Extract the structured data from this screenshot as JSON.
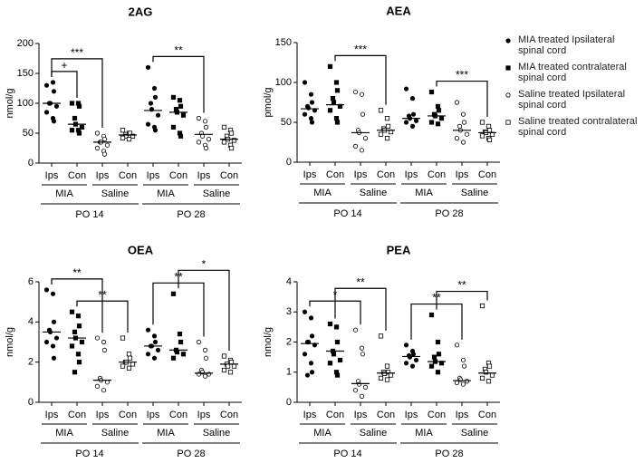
{
  "legend": [
    {
      "label": "MIA treated Ipsilateral spinal cord",
      "marker": "filled-circle"
    },
    {
      "label": "MIA treated contralateral spinal cord",
      "marker": "filled-square"
    },
    {
      "label": "Saline treated Ipsilateral spinal cord",
      "marker": "open-circle"
    },
    {
      "label": "Saline treated contralateral spinal cord",
      "marker": "open-square"
    }
  ],
  "chart_data": [
    {
      "type": "dot",
      "title": "2AG",
      "ylabel": "nmol/g",
      "ylim": [
        0,
        200
      ],
      "yticks": [
        0,
        50,
        100,
        150,
        200
      ],
      "categories": [
        "Ips",
        "Con",
        "Ips",
        "Con",
        "Ips",
        "Con",
        "Ips",
        "Con"
      ],
      "groups": [
        "MIA",
        "Saline",
        "MIA",
        "Saline"
      ],
      "timepoints": [
        "PO 14",
        "PO 28"
      ],
      "points": [
        [
          130,
          135,
          120,
          100,
          100,
          95,
          85,
          75,
          70
        ],
        [
          100,
          100,
          95,
          75,
          65,
          60,
          55,
          55,
          50
        ],
        [
          50,
          45,
          40,
          35,
          35,
          30,
          25,
          20,
          15
        ],
        [
          55,
          50,
          50,
          48,
          45,
          45,
          42,
          40
        ],
        [
          160,
          125,
          110,
          100,
          90,
          80,
          65,
          60,
          55
        ],
        [
          110,
          105,
          95,
          90,
          85,
          80,
          60,
          50,
          45
        ],
        [
          75,
          70,
          60,
          50,
          45,
          40,
          35,
          30,
          25
        ],
        [
          60,
          55,
          50,
          45,
          40,
          38,
          35,
          30,
          25
        ]
      ],
      "medians": [
        100,
        65,
        35,
        47,
        88,
        85,
        48,
        40
      ],
      "annotations": [
        {
          "text": "***",
          "from": 0,
          "to": 2
        },
        {
          "text": "+",
          "from": 0,
          "to": 1
        },
        {
          "text": "**",
          "from": 4,
          "to": 6
        }
      ]
    },
    {
      "type": "dot",
      "title": "AEA",
      "ylabel": "pmol/g",
      "ylim": [
        0,
        150
      ],
      "yticks": [
        0,
        50,
        100,
        150
      ],
      "categories": [
        "Ips",
        "Con",
        "Ips",
        "Con",
        "Ips",
        "Con",
        "Ips",
        "Con"
      ],
      "groups": [
        "MIA",
        "Saline",
        "MIA",
        "Saline"
      ],
      "timepoints": [
        "PO 14",
        "PO 28"
      ],
      "points": [
        [
          100,
          85,
          75,
          70,
          68,
          65,
          60,
          55,
          50
        ],
        [
          120,
          100,
          90,
          80,
          75,
          70,
          65,
          55,
          50
        ],
        [
          88,
          85,
          60,
          40,
          37,
          30,
          20,
          15
        ],
        [
          65,
          55,
          45,
          42,
          40,
          38,
          35,
          30
        ],
        [
          92,
          80,
          60,
          58,
          55,
          52,
          50,
          45
        ],
        [
          88,
          70,
          65,
          60,
          58,
          55,
          50,
          48
        ],
        [
          75,
          60,
          50,
          45,
          40,
          35,
          30,
          25
        ],
        [
          50,
          45,
          40,
          38,
          37,
          35,
          33,
          30,
          28
        ]
      ],
      "medians": [
        67,
        72,
        37,
        40,
        55,
        58,
        40,
        37
      ],
      "annotations": [
        {
          "text": "***",
          "from": 1,
          "to": 3
        },
        {
          "text": "***",
          "from": 5,
          "to": 7
        }
      ]
    },
    {
      "type": "dot",
      "title": "OEA",
      "ylabel": "nmol/g",
      "ylim": [
        0,
        6
      ],
      "yticks": [
        0,
        2,
        4,
        6
      ],
      "categories": [
        "Ips",
        "Con",
        "Ips",
        "Con",
        "Ips",
        "Con",
        "Ips",
        "Con"
      ],
      "groups": [
        "MIA",
        "Saline",
        "MIA",
        "Saline"
      ],
      "timepoints": [
        "PO 14",
        "PO 28"
      ],
      "points": [
        [
          5.6,
          5.4,
          4.0,
          3.6,
          3.5,
          3.2,
          3.0,
          2.8,
          2.2
        ],
        [
          4.5,
          4.3,
          3.8,
          3.5,
          3.2,
          3.0,
          2.8,
          2.4,
          2.0,
          1.5
        ],
        [
          3.2,
          3.0,
          2.6,
          1.2,
          1.1,
          1.0,
          0.8,
          0.6
        ],
        [
          3.2,
          2.4,
          2.2,
          2.0,
          2.0,
          1.9,
          1.8,
          1.7
        ],
        [
          3.6,
          3.3,
          3.0,
          2.8,
          2.8,
          2.6,
          2.4,
          2.2
        ],
        [
          5.4,
          3.4,
          3.0,
          2.6,
          2.5,
          2.4,
          2.2
        ],
        [
          3.0,
          2.6,
          2.2,
          1.6,
          1.5,
          1.4,
          1.4,
          1.3
        ],
        [
          2.3,
          2.1,
          2.0,
          1.9,
          1.8,
          1.8,
          1.6,
          1.5
        ]
      ],
      "medians": [
        3.5,
        3.2,
        1.1,
        2.0,
        2.8,
        2.6,
        1.45,
        1.9
      ],
      "annotations": [
        {
          "text": "**",
          "from": 0,
          "to": 2
        },
        {
          "text": "**",
          "from": 1,
          "to": 3
        },
        {
          "text": "**",
          "from": 4,
          "to": 6
        },
        {
          "text": "*",
          "from": 5,
          "to": 7
        }
      ]
    },
    {
      "type": "dot",
      "title": "PEA",
      "ylabel": "nmol/g",
      "ylim": [
        0,
        4
      ],
      "yticks": [
        0,
        1,
        2,
        3,
        4
      ],
      "categories": [
        "Ips",
        "Con",
        "Ips",
        "Con",
        "Ips",
        "Con",
        "Ips",
        "Con"
      ],
      "groups": [
        "MIA",
        "Saline",
        "MIA",
        "Saline"
      ],
      "timepoints": [
        "PO 14",
        "PO 28"
      ],
      "points": [
        [
          3.0,
          2.8,
          2.2,
          2.0,
          2.0,
          1.9,
          1.6,
          1.3,
          1.0,
          0.9
        ],
        [
          2.6,
          2.5,
          2.0,
          1.7,
          1.6,
          1.4,
          1.3,
          1.0,
          0.9
        ],
        [
          2.4,
          1.8,
          1.6,
          0.7,
          0.6,
          0.5,
          0.4,
          0.2
        ],
        [
          2.2,
          1.2,
          1.0,
          1.0,
          0.95,
          0.9,
          0.8,
          0.75
        ],
        [
          1.9,
          1.7,
          1.6,
          1.55,
          1.5,
          1.4,
          1.3,
          1.2
        ],
        [
          2.9,
          2.0,
          1.6,
          1.5,
          1.35,
          1.3,
          1.2,
          1.0
        ],
        [
          1.9,
          1.4,
          1.2,
          0.8,
          0.75,
          0.7,
          0.65,
          0.6
        ],
        [
          3.2,
          1.3,
          1.2,
          1.1,
          1.0,
          0.9,
          0.8,
          0.7
        ]
      ],
      "medians": [
        1.95,
        1.7,
        0.62,
        0.97,
        1.52,
        1.35,
        0.72,
        0.97
      ],
      "annotations": [
        {
          "text": "*",
          "from": 0,
          "to": 2
        },
        {
          "text": "**",
          "from": 1,
          "to": 3
        },
        {
          "text": "**",
          "from": 4,
          "to": 6
        },
        {
          "text": "**",
          "from": 5,
          "to": 7
        }
      ]
    }
  ]
}
